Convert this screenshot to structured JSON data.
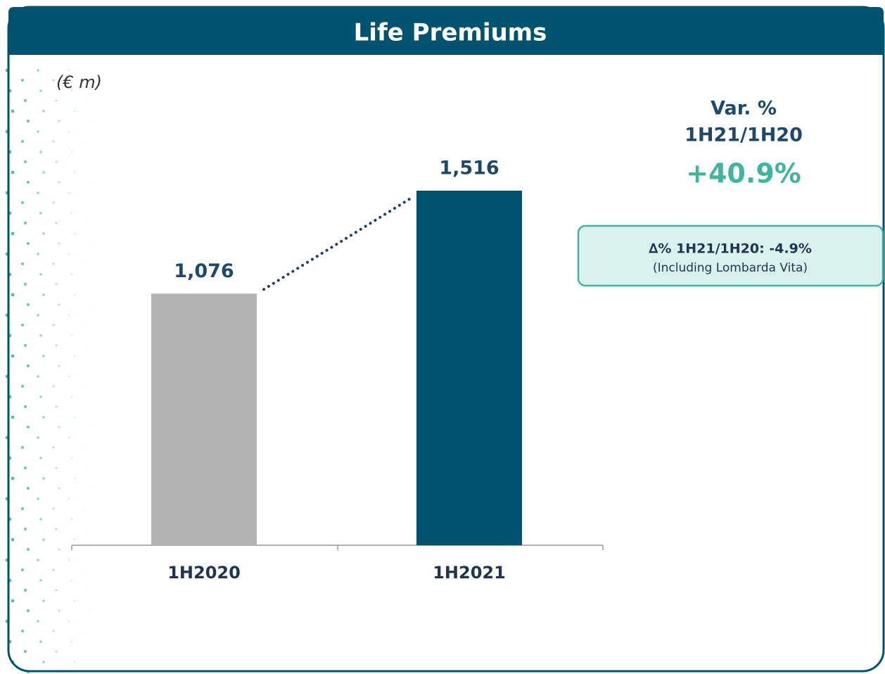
{
  "chart_data": {
    "type": "bar",
    "title": "Life Premiums",
    "unit_label": "(€ m)",
    "categories": [
      "1H2020",
      "1H2021"
    ],
    "values": [
      1076,
      1516
    ],
    "value_labels": [
      "1,076",
      "1,516"
    ],
    "colors": [
      "#b3b3b3",
      "#00536f"
    ],
    "annotations": {
      "variation_title": "Var. %",
      "variation_period": "1H21/1H20",
      "variation_value": "+40.9%",
      "note_main": "∆% 1H21/1H20:  -4.9%",
      "note_sub": "(Including Lombarda Vita)"
    }
  }
}
